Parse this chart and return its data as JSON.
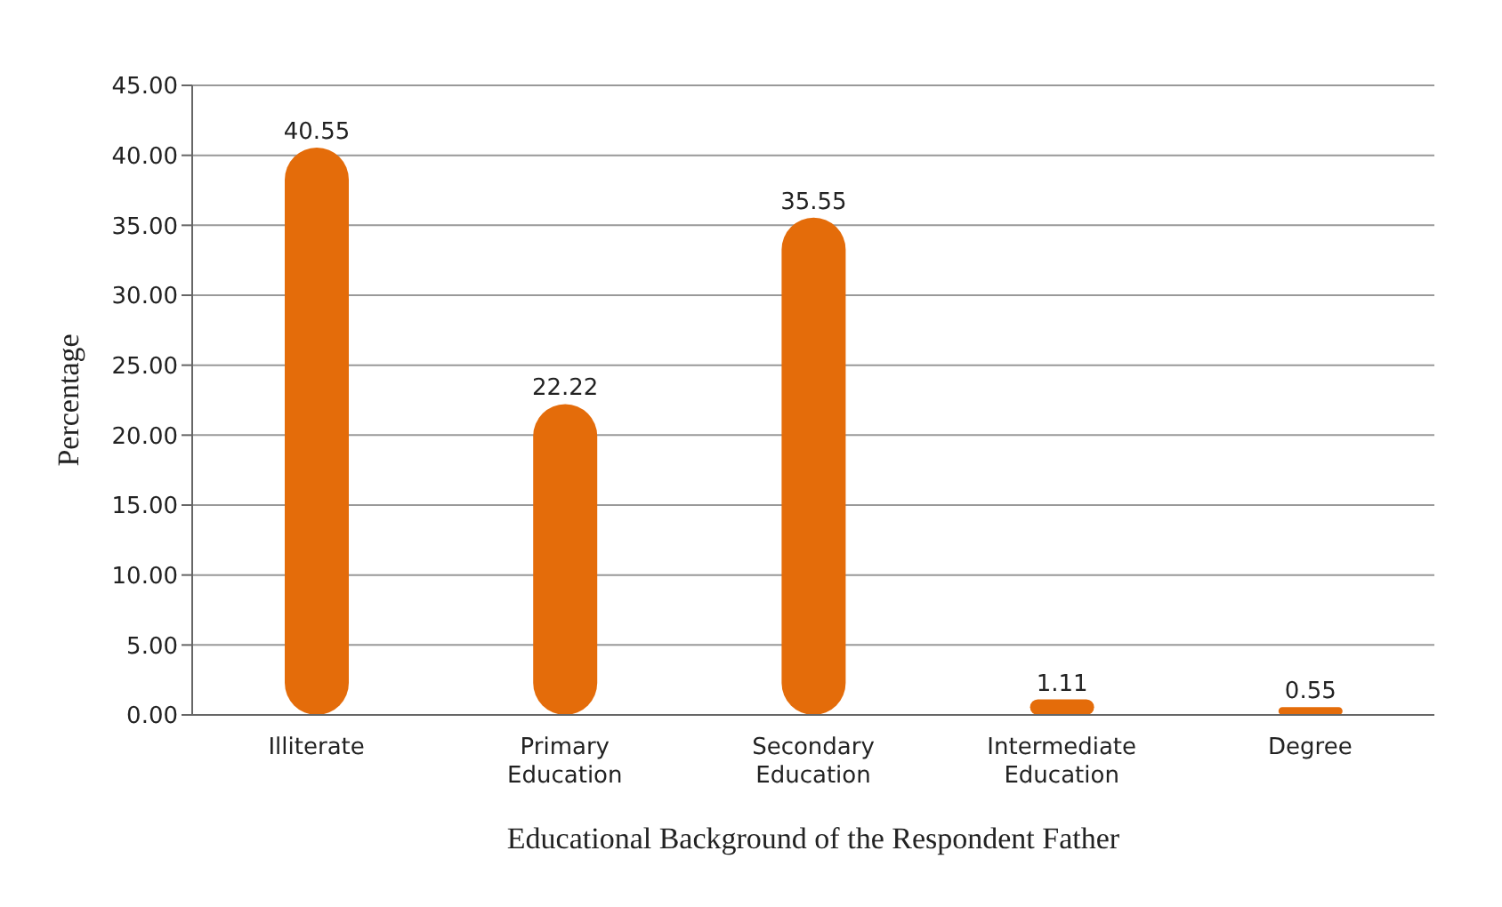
{
  "chart_data": {
    "type": "bar",
    "xlabel": "Educational Background of the  Respondent Father",
    "ylabel": "Percentage",
    "categories": [
      "Illiterate",
      "Primary Education",
      "Secondary Education",
      "Intermediate Education",
      "Degree"
    ],
    "values": [
      40.55,
      22.22,
      35.55,
      1.11,
      0.55
    ],
    "color": "#e46c0a",
    "ylim": [
      0,
      45
    ],
    "yticks": [
      {
        "value": 0,
        "label": "0.00"
      },
      {
        "value": 5,
        "label": "5.00"
      },
      {
        "value": 10,
        "label": "10.00"
      },
      {
        "value": 15,
        "label": "15.00"
      },
      {
        "value": 20,
        "label": "20.00"
      },
      {
        "value": 25,
        "label": "25.00"
      },
      {
        "value": 30,
        "label": "30.00"
      },
      {
        "value": 35,
        "label": "35.00"
      },
      {
        "value": 40,
        "label": "40.00"
      },
      {
        "value": 45,
        "label": "45.00"
      }
    ],
    "grid": "y",
    "data_labels": true
  }
}
